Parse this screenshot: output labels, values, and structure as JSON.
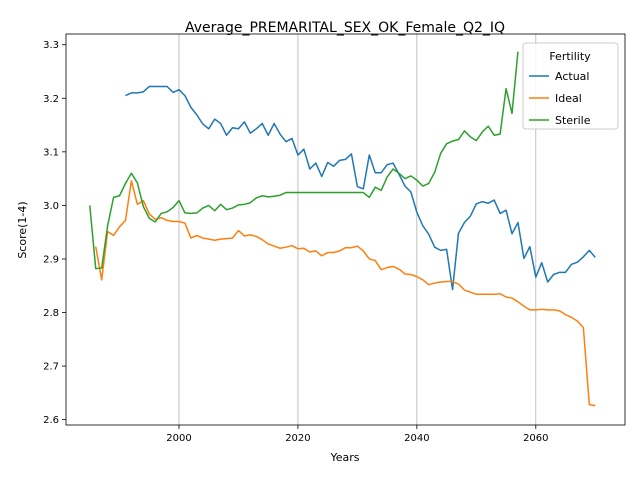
{
  "chart_data": {
    "type": "line",
    "title": "Average_PREMARITAL_SEX_OK_Female_Q2_IQ",
    "xlabel": "Years",
    "ylabel": "Score(1-4)",
    "xlim": [
      1981,
      2075
    ],
    "ylim": [
      2.59,
      3.32
    ],
    "xticks": [
      2000,
      2020,
      2040,
      2060
    ],
    "yticks": [
      2.6,
      2.7,
      2.8,
      2.9,
      3.0,
      3.1,
      3.2,
      3.3
    ],
    "grid": "vertical",
    "legend": {
      "title": "Fertility",
      "placement": "top-right"
    },
    "series": [
      {
        "name": "Actual",
        "color": "#1f77b4",
        "points": [
          [
            1991,
            3.205
          ],
          [
            1992,
            3.21
          ],
          [
            1993,
            3.21
          ],
          [
            1994,
            3.212
          ],
          [
            1995,
            3.222
          ],
          [
            1996,
            3.222
          ],
          [
            1997,
            3.222
          ],
          [
            1998,
            3.222
          ],
          [
            1999,
            3.211
          ],
          [
            2000,
            3.216
          ],
          [
            2001,
            3.205
          ],
          [
            2002,
            3.183
          ],
          [
            2003,
            3.169
          ],
          [
            2004,
            3.152
          ],
          [
            2005,
            3.143
          ],
          [
            2006,
            3.161
          ],
          [
            2007,
            3.153
          ],
          [
            2008,
            3.131
          ],
          [
            2009,
            3.145
          ],
          [
            2010,
            3.143
          ],
          [
            2011,
            3.156
          ],
          [
            2012,
            3.135
          ],
          [
            2013,
            3.143
          ],
          [
            2014,
            3.153
          ],
          [
            2015,
            3.131
          ],
          [
            2016,
            3.153
          ],
          [
            2017,
            3.133
          ],
          [
            2018,
            3.119
          ],
          [
            2019,
            3.125
          ],
          [
            2020,
            3.094
          ],
          [
            2021,
            3.105
          ],
          [
            2022,
            3.068
          ],
          [
            2023,
            3.079
          ],
          [
            2024,
            3.054
          ],
          [
            2025,
            3.08
          ],
          [
            2026,
            3.073
          ],
          [
            2027,
            3.084
          ],
          [
            2028,
            3.086
          ],
          [
            2029,
            3.096
          ],
          [
            2030,
            3.035
          ],
          [
            2031,
            3.031
          ],
          [
            2032,
            3.094
          ],
          [
            2033,
            3.061
          ],
          [
            2034,
            3.061
          ],
          [
            2035,
            3.076
          ],
          [
            2036,
            3.079
          ],
          [
            2037,
            3.058
          ],
          [
            2038,
            3.036
          ],
          [
            2039,
            3.025
          ],
          [
            2040,
            2.987
          ],
          [
            2041,
            2.962
          ],
          [
            2042,
            2.946
          ],
          [
            2043,
            2.922
          ],
          [
            2044,
            2.916
          ],
          [
            2045,
            2.918
          ],
          [
            2046,
            2.843
          ],
          [
            2047,
            2.948
          ],
          [
            2048,
            2.968
          ],
          [
            2049,
            2.98
          ],
          [
            2050,
            3.003
          ],
          [
            2051,
            3.007
          ],
          [
            2052,
            3.004
          ],
          [
            2053,
            3.01
          ],
          [
            2054,
            2.985
          ],
          [
            2055,
            2.991
          ],
          [
            2056,
            2.947
          ],
          [
            2057,
            2.968
          ],
          [
            2058,
            2.901
          ],
          [
            2059,
            2.923
          ],
          [
            2060,
            2.866
          ],
          [
            2061,
            2.893
          ],
          [
            2062,
            2.857
          ],
          [
            2063,
            2.871
          ],
          [
            2064,
            2.875
          ],
          [
            2065,
            2.875
          ],
          [
            2066,
            2.89
          ],
          [
            2067,
            2.894
          ],
          [
            2068,
            2.904
          ],
          [
            2069,
            2.916
          ],
          [
            2070,
            2.903
          ]
        ]
      },
      {
        "name": "Ideal",
        "color": "#ff7f0e",
        "points": [
          [
            1986,
            2.923
          ],
          [
            1987,
            2.861
          ],
          [
            1988,
            2.951
          ],
          [
            1989,
            2.944
          ],
          [
            1990,
            2.96
          ],
          [
            1991,
            2.972
          ],
          [
            1992,
            3.046
          ],
          [
            1993,
            3.002
          ],
          [
            1994,
            3.009
          ],
          [
            1995,
            2.984
          ],
          [
            1996,
            2.974
          ],
          [
            1997,
            2.977
          ],
          [
            1998,
            2.972
          ],
          [
            1999,
            2.97
          ],
          [
            2000,
            2.97
          ],
          [
            2001,
            2.967
          ],
          [
            2002,
            2.939
          ],
          [
            2003,
            2.944
          ],
          [
            2004,
            2.939
          ],
          [
            2005,
            2.937
          ],
          [
            2006,
            2.935
          ],
          [
            2007,
            2.937
          ],
          [
            2008,
            2.938
          ],
          [
            2009,
            2.939
          ],
          [
            2010,
            2.953
          ],
          [
            2011,
            2.943
          ],
          [
            2012,
            2.945
          ],
          [
            2013,
            2.942
          ],
          [
            2014,
            2.936
          ],
          [
            2015,
            2.928
          ],
          [
            2016,
            2.924
          ],
          [
            2017,
            2.92
          ],
          [
            2018,
            2.922
          ],
          [
            2019,
            2.925
          ],
          [
            2020,
            2.919
          ],
          [
            2021,
            2.92
          ],
          [
            2022,
            2.913
          ],
          [
            2023,
            2.915
          ],
          [
            2024,
            2.906
          ],
          [
            2025,
            2.912
          ],
          [
            2026,
            2.912
          ],
          [
            2027,
            2.915
          ],
          [
            2028,
            2.921
          ],
          [
            2029,
            2.921
          ],
          [
            2030,
            2.924
          ],
          [
            2031,
            2.915
          ],
          [
            2032,
            2.9
          ],
          [
            2033,
            2.897
          ],
          [
            2034,
            2.88
          ],
          [
            2035,
            2.884
          ],
          [
            2036,
            2.886
          ],
          [
            2037,
            2.881
          ],
          [
            2038,
            2.872
          ],
          [
            2039,
            2.871
          ],
          [
            2040,
            2.867
          ],
          [
            2041,
            2.861
          ],
          [
            2042,
            2.852
          ],
          [
            2043,
            2.855
          ],
          [
            2044,
            2.857
          ],
          [
            2045,
            2.858
          ],
          [
            2046,
            2.858
          ],
          [
            2047,
            2.853
          ],
          [
            2048,
            2.842
          ],
          [
            2049,
            2.838
          ],
          [
            2050,
            2.834
          ],
          [
            2051,
            2.834
          ],
          [
            2052,
            2.834
          ],
          [
            2053,
            2.834
          ],
          [
            2054,
            2.835
          ],
          [
            2055,
            2.829
          ],
          [
            2056,
            2.827
          ],
          [
            2057,
            2.82
          ],
          [
            2058,
            2.812
          ],
          [
            2059,
            2.805
          ],
          [
            2060,
            2.805
          ],
          [
            2061,
            2.806
          ],
          [
            2062,
            2.805
          ],
          [
            2063,
            2.805
          ],
          [
            2064,
            2.803
          ],
          [
            2065,
            2.796
          ],
          [
            2066,
            2.791
          ],
          [
            2067,
            2.784
          ],
          [
            2068,
            2.772
          ],
          [
            2069,
            2.628
          ],
          [
            2070,
            2.626
          ]
        ]
      },
      {
        "name": "Sterile",
        "color": "#2ca02c",
        "points": [
          [
            1985,
            3.0
          ],
          [
            1986,
            2.882
          ],
          [
            1987,
            2.883
          ],
          [
            1988,
            2.962
          ],
          [
            1989,
            3.015
          ],
          [
            1990,
            3.018
          ],
          [
            1991,
            3.041
          ],
          [
            1992,
            3.06
          ],
          [
            1993,
            3.042
          ],
          [
            1994,
            2.998
          ],
          [
            1995,
            2.976
          ],
          [
            1996,
            2.969
          ],
          [
            1997,
            2.985
          ],
          [
            1998,
            2.988
          ],
          [
            1999,
            2.996
          ],
          [
            2000,
            3.009
          ],
          [
            2001,
            2.986
          ],
          [
            2002,
            2.985
          ],
          [
            2003,
            2.986
          ],
          [
            2004,
            2.995
          ],
          [
            2005,
            3.0
          ],
          [
            2006,
            2.99
          ],
          [
            2007,
            3.002
          ],
          [
            2008,
            2.992
          ],
          [
            2009,
            2.995
          ],
          [
            2010,
            3.001
          ],
          [
            2011,
            3.002
          ],
          [
            2012,
            3.005
          ],
          [
            2013,
            3.014
          ],
          [
            2014,
            3.018
          ],
          [
            2015,
            3.016
          ],
          [
            2016,
            3.017
          ],
          [
            2017,
            3.019
          ],
          [
            2018,
            3.024
          ],
          [
            2019,
            3.024
          ],
          [
            2020,
            3.024
          ],
          [
            2021,
            3.024
          ],
          [
            2022,
            3.024
          ],
          [
            2023,
            3.024
          ],
          [
            2024,
            3.024
          ],
          [
            2025,
            3.024
          ],
          [
            2026,
            3.024
          ],
          [
            2027,
            3.024
          ],
          [
            2028,
            3.024
          ],
          [
            2029,
            3.024
          ],
          [
            2030,
            3.024
          ],
          [
            2031,
            3.024
          ],
          [
            2032,
            3.015
          ],
          [
            2033,
            3.034
          ],
          [
            2034,
            3.028
          ],
          [
            2035,
            3.053
          ],
          [
            2036,
            3.068
          ],
          [
            2037,
            3.06
          ],
          [
            2038,
            3.05
          ],
          [
            2039,
            3.055
          ],
          [
            2040,
            3.047
          ],
          [
            2041,
            3.036
          ],
          [
            2042,
            3.041
          ],
          [
            2043,
            3.062
          ],
          [
            2044,
            3.097
          ],
          [
            2045,
            3.115
          ],
          [
            2046,
            3.12
          ],
          [
            2047,
            3.123
          ],
          [
            2048,
            3.139
          ],
          [
            2049,
            3.128
          ],
          [
            2050,
            3.121
          ],
          [
            2051,
            3.137
          ],
          [
            2052,
            3.148
          ],
          [
            2053,
            3.131
          ],
          [
            2054,
            3.133
          ],
          [
            2055,
            3.218
          ],
          [
            2056,
            3.172
          ],
          [
            2057,
            3.287
          ]
        ]
      }
    ]
  }
}
